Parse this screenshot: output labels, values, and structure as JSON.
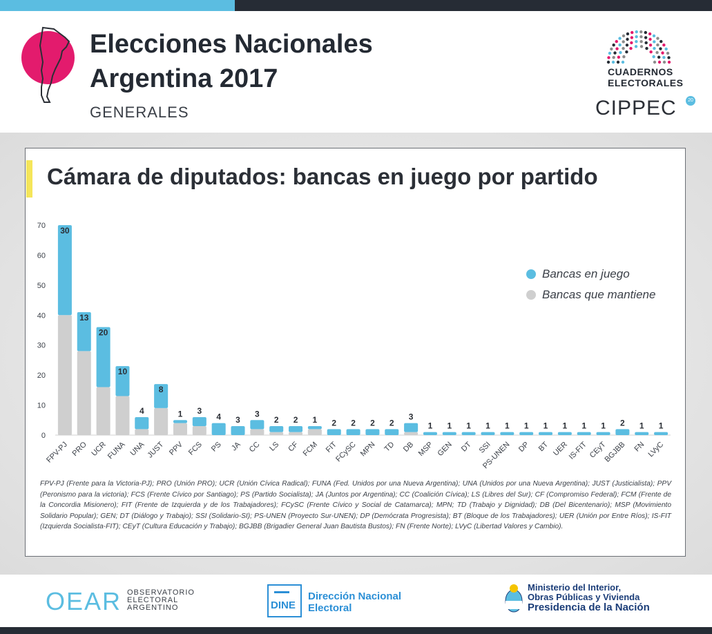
{
  "header": {
    "title_line1": "Elecciones Nacionales",
    "title_line2": "Argentina 2017",
    "subtitle": "GENERALES",
    "ce_line1": "CUADERNOS",
    "ce_line2": "ELECTORALES",
    "cippec": "CIPPEC",
    "cippec_badge": "20"
  },
  "colors": {
    "blue": "#5bbde1",
    "gray": "#cfcfcf",
    "pink": "#e31b6d",
    "dark": "#262c35"
  },
  "chart_data": {
    "type": "bar",
    "stacked": true,
    "title": "Cámara de diputados: bancas en juego por partido",
    "xlabel": "",
    "ylabel": "",
    "ylim": [
      0,
      70
    ],
    "yticks": [
      0,
      10,
      20,
      30,
      40,
      50,
      60,
      70
    ],
    "categories": [
      "FPV-PJ",
      "PRO",
      "UCR",
      "FUNA",
      "UNA",
      "JUST",
      "PPV",
      "FCS",
      "PS",
      "JA",
      "CC",
      "LS",
      "CF",
      "FCM",
      "FIT",
      "FCySC",
      "MPN",
      "TD",
      "DB",
      "MSP",
      "GEN",
      "DT",
      "SSI",
      "PS-UNEN",
      "DP",
      "BT",
      "UER",
      "IS-FIT",
      "CEyT",
      "BGJBB",
      "FN",
      "LVyC"
    ],
    "series": [
      {
        "name": "Bancas que mantiene",
        "values": [
          40,
          28,
          16,
          13,
          2,
          9,
          4,
          3,
          0,
          0,
          2,
          1,
          1,
          2,
          0,
          0,
          0,
          0,
          1,
          0,
          0,
          0,
          0,
          0,
          0,
          0,
          0,
          0,
          0,
          0,
          0,
          0
        ]
      },
      {
        "name": "Bancas en juego",
        "values": [
          30,
          13,
          20,
          10,
          4,
          8,
          1,
          3,
          4,
          3,
          3,
          2,
          2,
          1,
          2,
          2,
          2,
          2,
          3,
          1,
          1,
          1,
          1,
          1,
          1,
          1,
          1,
          1,
          1,
          2,
          1,
          1
        ]
      }
    ],
    "data_labels": [
      30,
      13,
      20,
      10,
      4,
      8,
      1,
      3,
      4,
      3,
      3,
      2,
      2,
      1,
      2,
      2,
      2,
      2,
      3,
      1,
      1,
      1,
      1,
      1,
      1,
      1,
      1,
      1,
      1,
      2,
      1,
      1
    ],
    "legend": [
      "Bancas en juego",
      "Bancas que mantiene"
    ],
    "legend_position": "right"
  },
  "footnote": "FPV-PJ (Frente para la Victoria-PJ); PRO (Unión PRO); UCR (Unión Cívica Radical); FUNA (Fed. Unidos por una Nueva Argentina); UNA (Unidos por una Nueva Argentina); JUST (Justicialista); PPV (Peronismo para la victoria); FCS (Frente Cívico por Santiago); PS (Partido Socialista); JA (Juntos por Argentina); CC (Coalición Cívica); LS (Libres del Sur); CF (Compromiso Federal); FCM (Frente de la Concordia Misionero); FIT (Frente de Izquierda y de los Trabajadores); FCySC (Frente Cívico y Social de Catamarca); MPN; TD (Trabajo y Dignidad); DB (Del Bicentenario); MSP (Movimiento Solidario Popular); GEN; DT (Diálogo y Trabajo); SSI (Solidario-SI); PS-UNEN (Proyecto Sur-UNEN); DP (Demócrata Progresista); BT (Bloque de los Trabajadores); UER (Unión por Entre Ríos); IS-FIT (Izquierda Socialista-FIT); CEyT (Cultura Educación y Trabajo); BGJBB (Brigadier General Juan Bautista Bustos); FN (Frente Norte); LVyC (Libertad Valores y Cambio).",
  "footer": {
    "oear": "OEAR",
    "oear_sub1": "OBSERVATORIO",
    "oear_sub2": "ELECTORAL",
    "oear_sub3": "ARGENTINO",
    "dine_box": "DINE",
    "dine_line1": "Dirección Nacional",
    "dine_line2": "Electoral",
    "ministry_line1": "Ministerio del Interior,",
    "ministry_line2": "Obras Públicas y Vivienda",
    "ministry_line3": "Presidencia de la Nación"
  }
}
